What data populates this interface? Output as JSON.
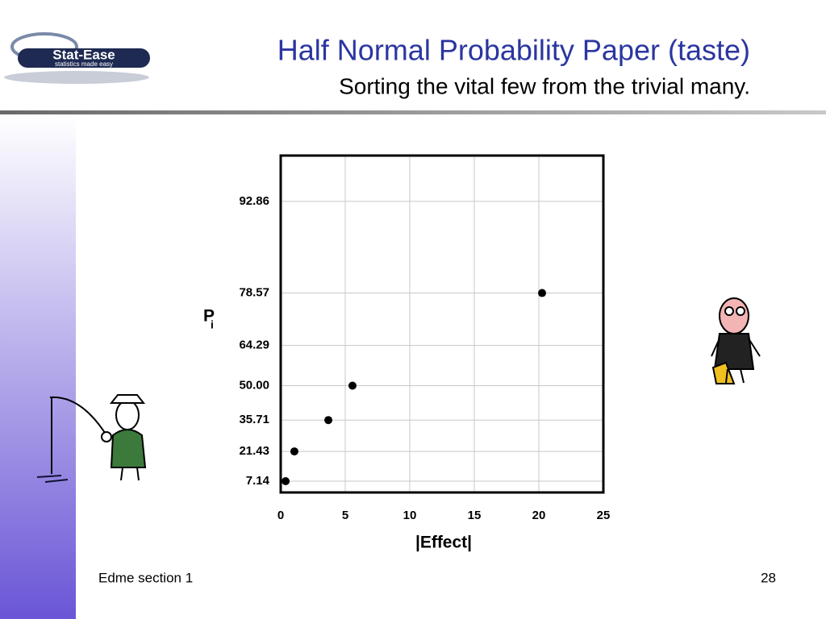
{
  "logo": {
    "name": "Stat-Ease",
    "tagline": "statistics made easy"
  },
  "chart_data": {
    "type": "scatter",
    "title": "Half Normal Probability Paper (taste)",
    "subtitle": "Sorting the vital few from the trivial many.",
    "xlabel": "|Effect|",
    "ylabel": "P",
    "ylabel_subscript": "i",
    "x": [
      0.38,
      1.06,
      3.69,
      5.56,
      20.25
    ],
    "values": [
      7.14,
      21.43,
      35.71,
      50,
      78.57
    ],
    "color": "#000000",
    "xlim": [
      0,
      25
    ],
    "xticks": [
      0,
      5,
      10,
      15,
      20,
      25
    ],
    "ylim": [
      1.64,
      96.28
    ],
    "y_scale": "half-normal",
    "yticks": [
      7.14,
      21.43,
      35.71,
      {
        "value": 50,
        "label": "50.00"
      },
      64.29,
      78.57,
      92.86
    ],
    "grid": true
  },
  "footer": {
    "left": "Edme section 1",
    "page_number": 28
  }
}
